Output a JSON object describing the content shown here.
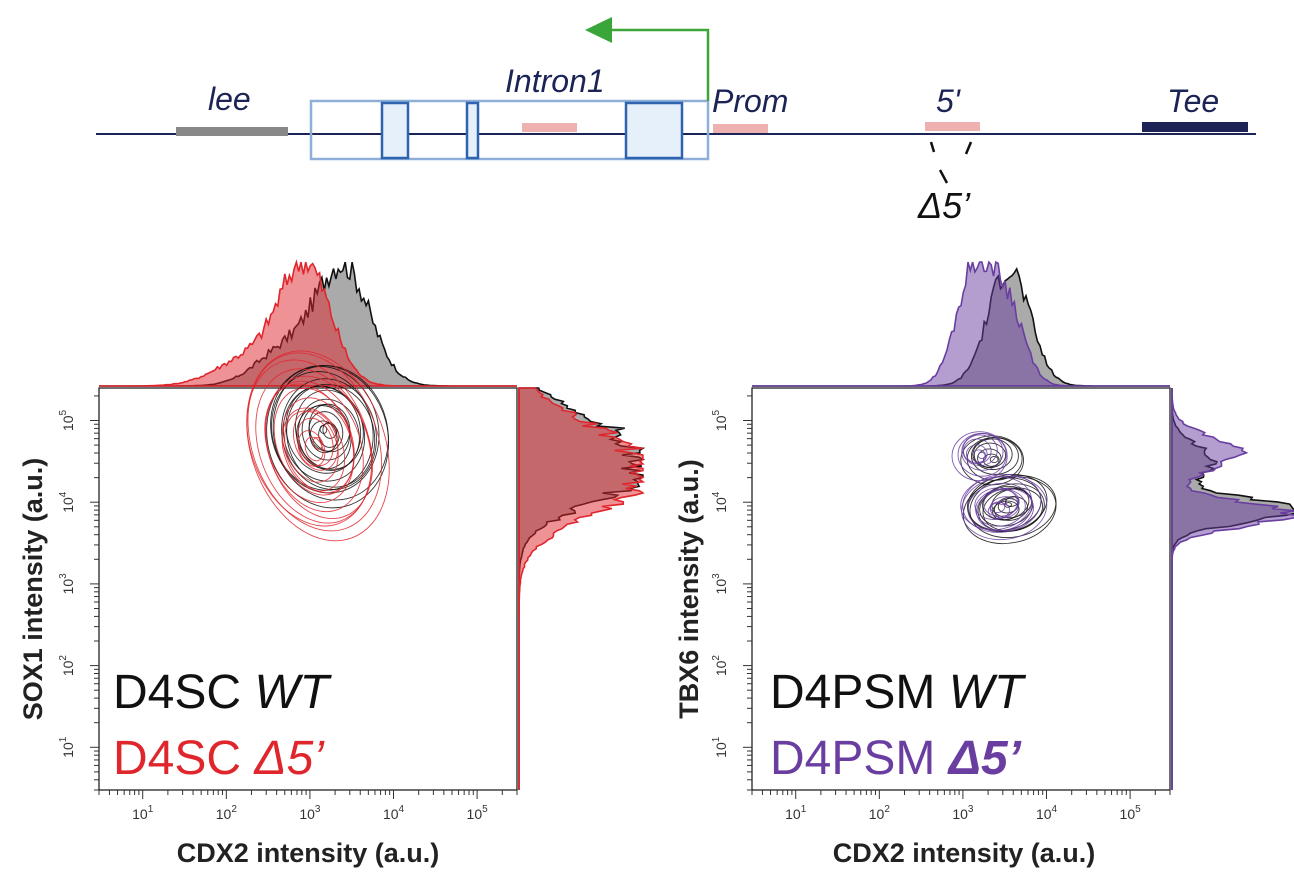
{
  "colors": {
    "line": "#1c2456",
    "black": "#111111",
    "red": "#e0262d",
    "purple": "#6a3ea1",
    "green": "#3aa63a",
    "pink": "#efb0b0",
    "grey": "#888888",
    "navy": "#1c2456",
    "exonFill": "#e6f0fb",
    "exonStroke": "#2e63b0",
    "boxStroke": "#8fafd8"
  },
  "diagram": {
    "labels": {
      "lee": "lee",
      "intron1": "Intron1",
      "prom": "Prom",
      "five": "5'",
      "tee": "Tee",
      "delta": "Δ5’"
    }
  },
  "chart_data": [
    {
      "type": "contour",
      "panel": "left",
      "xlabel": "CDX2 intensity (a.u.)",
      "ylabel": "SOX1 intensity (a.u.)",
      "xscale": "log",
      "yscale": "log",
      "xlim": [
        3,
        300000
      ],
      "ylim": [
        3,
        250000
      ],
      "x_ticks": [
        {
          "exp": 1,
          "label": "10",
          "sup": "1"
        },
        {
          "exp": 2,
          "label": "10",
          "sup": "2"
        },
        {
          "exp": 3,
          "label": "10",
          "sup": "3"
        },
        {
          "exp": 4,
          "label": "10",
          "sup": "4"
        },
        {
          "exp": 5,
          "label": "10",
          "sup": "5"
        }
      ],
      "y_ticks": [
        {
          "exp": 1,
          "label": "10",
          "sup": "1"
        },
        {
          "exp": 2,
          "label": "10",
          "sup": "2"
        },
        {
          "exp": 3,
          "label": "10",
          "sup": "3"
        },
        {
          "exp": 4,
          "label": "10",
          "sup": "4"
        },
        {
          "exp": 5,
          "label": "10",
          "sup": "5"
        }
      ],
      "legend": [
        {
          "prefix": "D4SC ",
          "emph": "WT",
          "color": "#111111"
        },
        {
          "prefix": "D4SC ",
          "emph": "Δ5’",
          "color": "#e0262d"
        }
      ],
      "series": [
        {
          "name": "D4SC WT",
          "color": "#111111",
          "peak": {
            "x_exp": 3.2,
            "y_exp": 4.85
          },
          "spread": {
            "sx": 0.45,
            "sy": 0.55,
            "rot": 0.25
          },
          "levels": 18,
          "x_hist": [
            {
              "x_exp": 3.4,
              "s": 0.32,
              "w": 1.0
            },
            {
              "x_exp": 2.7,
              "s": 0.35,
              "w": 0.3
            }
          ],
          "y_hist": [
            {
              "y_exp": 4.3,
              "s": 0.35,
              "w": 0.9
            },
            {
              "y_exp": 4.9,
              "s": 0.3,
              "w": 0.6
            }
          ]
        },
        {
          "name": "D4SC Δ5’",
          "color": "#e0262d",
          "peak": {
            "x_exp": 3.05,
            "y_exp": 4.7
          },
          "spread": {
            "sx": 0.5,
            "sy": 0.75,
            "rot": 0.35
          },
          "levels": 16,
          "x_hist": [
            {
              "x_exp": 2.95,
              "s": 0.3,
              "w": 1.0
            },
            {
              "x_exp": 2.3,
              "s": 0.4,
              "w": 0.25
            }
          ],
          "y_hist": [
            {
              "y_exp": 4.2,
              "s": 0.4,
              "w": 0.9
            },
            {
              "y_exp": 4.8,
              "s": 0.35,
              "w": 0.5
            }
          ]
        }
      ]
    },
    {
      "type": "contour",
      "panel": "right",
      "xlabel": "CDX2 intensity (a.u.)",
      "ylabel": "TBX6 intensity (a.u.)",
      "xscale": "log",
      "yscale": "log",
      "xlim": [
        3,
        300000
      ],
      "ylim": [
        3,
        250000
      ],
      "x_ticks": [
        {
          "exp": 1,
          "label": "10",
          "sup": "1"
        },
        {
          "exp": 2,
          "label": "10",
          "sup": "2"
        },
        {
          "exp": 3,
          "label": "10",
          "sup": "3"
        },
        {
          "exp": 4,
          "label": "10",
          "sup": "4"
        },
        {
          "exp": 5,
          "label": "10",
          "sup": "5"
        }
      ],
      "y_ticks": [
        {
          "exp": 1,
          "label": "10",
          "sup": "1"
        },
        {
          "exp": 2,
          "label": "10",
          "sup": "2"
        },
        {
          "exp": 3,
          "label": "10",
          "sup": "3"
        },
        {
          "exp": 4,
          "label": "10",
          "sup": "4"
        },
        {
          "exp": 5,
          "label": "10",
          "sup": "5"
        }
      ],
      "legend": [
        {
          "prefix": "D4PSM ",
          "emph": "WT",
          "color": "#111111"
        },
        {
          "prefix": "D4PSM ",
          "emph": "Δ5’",
          "color": "#6a3ea1"
        }
      ],
      "series": [
        {
          "name": "D4PSM WT",
          "color": "#111111",
          "peak": {
            "x_exp": 3.55,
            "y_exp": 3.95
          },
          "spread": {
            "sx": 0.35,
            "sy": 0.25,
            "rot": 0.2
          },
          "secondary": {
            "x_exp": 3.35,
            "y_exp": 4.55,
            "sx": 0.25,
            "sy": 0.2,
            "w": 0.55
          },
          "levels": 14,
          "x_hist": [
            {
              "x_exp": 3.55,
              "s": 0.25,
              "w": 1.0
            }
          ],
          "y_hist": [
            {
              "y_exp": 3.9,
              "s": 0.15,
              "w": 1.0
            },
            {
              "y_exp": 4.5,
              "s": 0.2,
              "w": 0.35
            }
          ]
        },
        {
          "name": "D4PSM Δ5’",
          "color": "#6a3ea1",
          "peak": {
            "x_exp": 3.45,
            "y_exp": 3.95
          },
          "spread": {
            "sx": 0.32,
            "sy": 0.24,
            "rot": 0.15
          },
          "secondary": {
            "x_exp": 3.2,
            "y_exp": 4.6,
            "sx": 0.22,
            "sy": 0.2,
            "w": 0.7
          },
          "levels": 12,
          "x_hist": [
            {
              "x_exp": 3.15,
              "s": 0.22,
              "w": 1.0
            },
            {
              "x_exp": 3.55,
              "s": 0.2,
              "w": 0.6
            }
          ],
          "y_hist": [
            {
              "y_exp": 3.85,
              "s": 0.15,
              "w": 1.0
            },
            {
              "y_exp": 4.6,
              "s": 0.2,
              "w": 0.55
            }
          ]
        }
      ]
    }
  ]
}
